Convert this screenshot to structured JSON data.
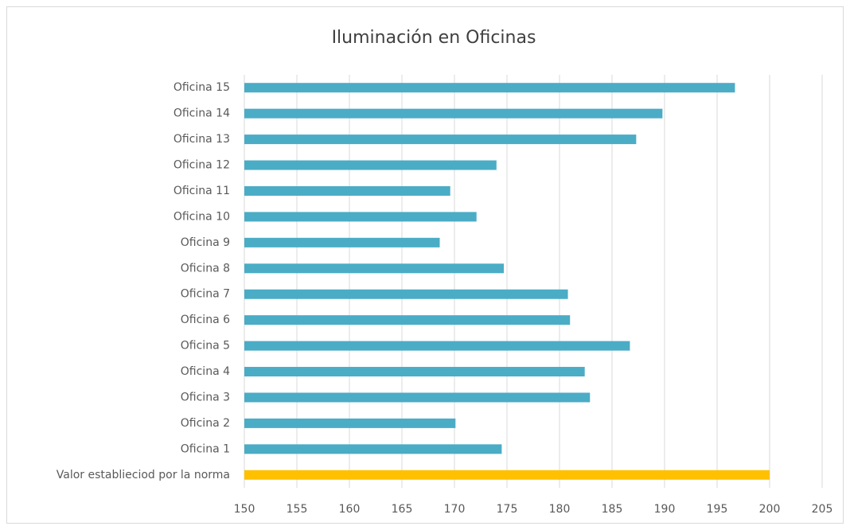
{
  "chart_data": {
    "type": "barh",
    "title": "Iluminación en Oficinas",
    "categories": [
      "Valor establieciod por la norma",
      "Oficina 1",
      "Oficina 2",
      "Oficina 3",
      "Oficina 4",
      "Oficina 5",
      "Oficina 6",
      "Oficina 7",
      "Oficina 8",
      "Oficina 9",
      "Oficina 10",
      "Oficina 11",
      "Oficina 12",
      "Oficina 13",
      "Oficina 14",
      "Oficina 15"
    ],
    "values": [
      200,
      174.5,
      170.1,
      182.9,
      182.4,
      186.7,
      181.0,
      180.8,
      174.7,
      168.6,
      172.1,
      169.6,
      174.0,
      187.3,
      189.8,
      196.7
    ],
    "colors": [
      "#ffc000",
      "#4bacc6",
      "#4bacc6",
      "#4bacc6",
      "#4bacc6",
      "#4bacc6",
      "#4bacc6",
      "#4bacc6",
      "#4bacc6",
      "#4bacc6",
      "#4bacc6",
      "#4bacc6",
      "#4bacc6",
      "#4bacc6",
      "#4bacc6",
      "#4bacc6"
    ],
    "xlim": [
      150,
      205
    ],
    "xticks": [
      150,
      155,
      160,
      165,
      170,
      175,
      180,
      185,
      190,
      195,
      200,
      205
    ],
    "grid": true
  }
}
